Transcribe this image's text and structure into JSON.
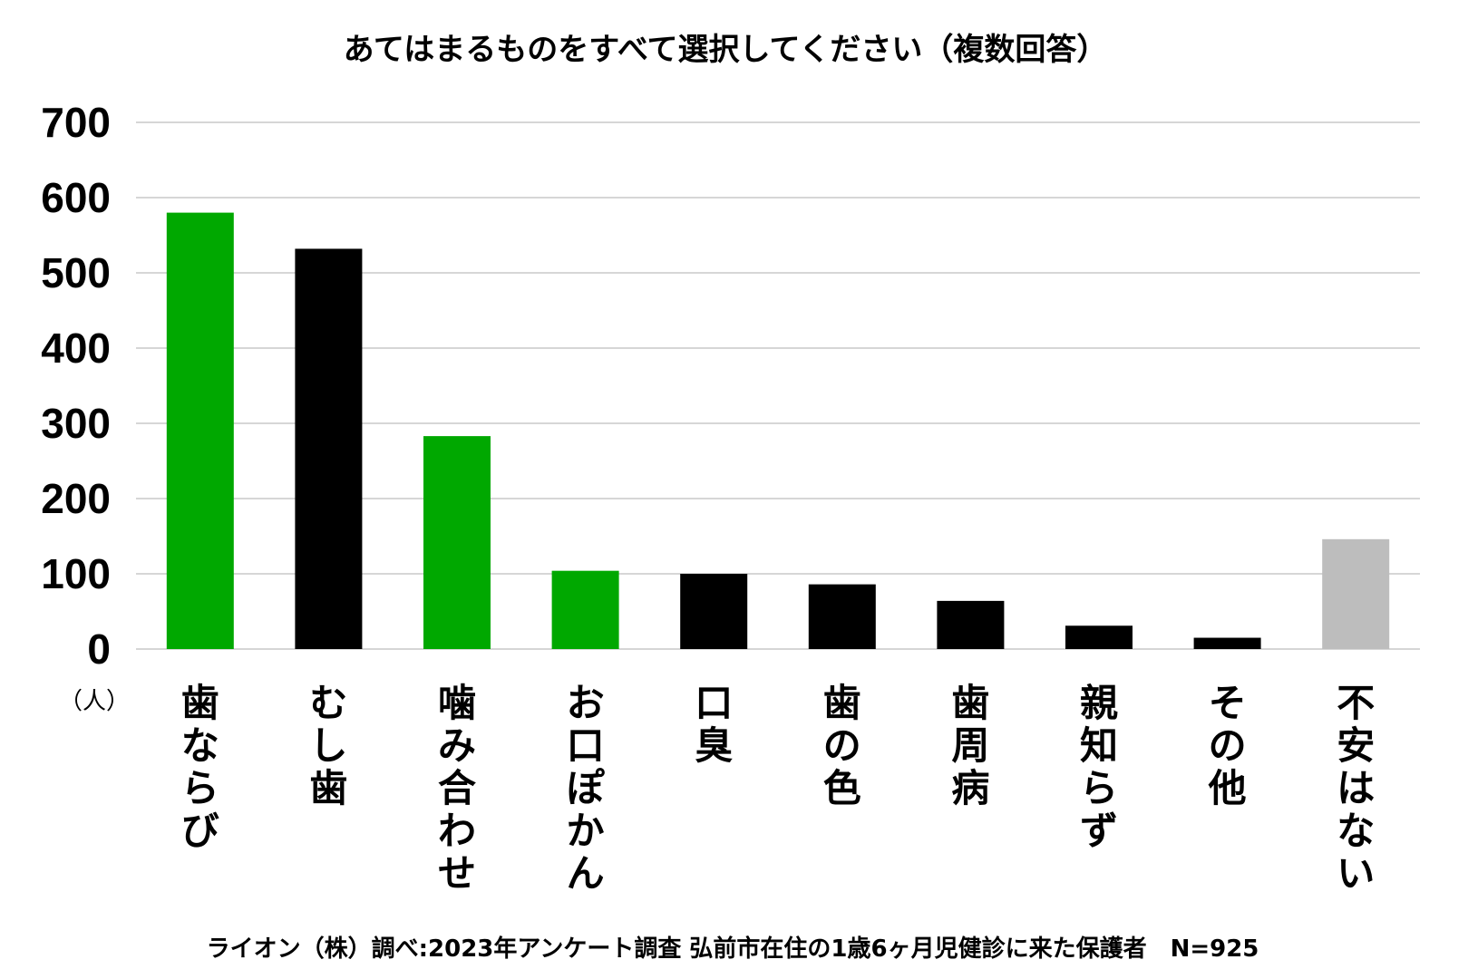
{
  "chart_data": {
    "type": "bar",
    "title": "あてはまるものをすべて選択してください（複数回答）",
    "unit_label": "（人）",
    "ylim": [
      0,
      700
    ],
    "yticks": [
      0,
      100,
      200,
      300,
      400,
      500,
      600,
      700
    ],
    "grid": true,
    "categories": [
      "歯ならび",
      "むし歯",
      "噛み合わせ",
      "お口ぽかん",
      "口臭",
      "歯の色",
      "歯周病",
      "親知らず",
      "その他",
      "不安はない"
    ],
    "values": [
      580,
      532,
      283,
      104,
      100,
      86,
      64,
      31,
      15,
      146
    ],
    "colors": [
      "#00a800",
      "#000000",
      "#00a800",
      "#00a800",
      "#000000",
      "#000000",
      "#000000",
      "#000000",
      "#000000",
      "#bdbdbd"
    ],
    "footnote": "ライオン（株）調べ:2023年アンケート調査 弘前市在住の1歳6ヶ月児健診に来た保護者　N=925"
  }
}
